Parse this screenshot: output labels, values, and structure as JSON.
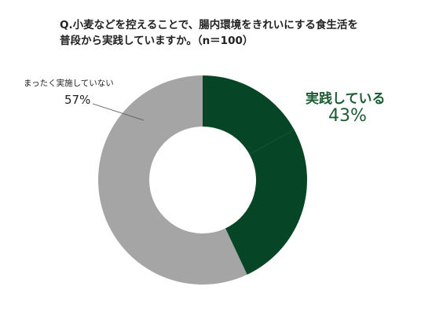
{
  "question": {
    "line1": "Q.小麦などを控えることで、腸内環境をきれいにする食生活を",
    "line2": "普段から実践していますか。（n＝100）"
  },
  "chart_data": {
    "type": "pie",
    "variant": "donut",
    "title": "Q.小麦などを控えることで、腸内環境をきれいにする食生活を普段から実践していますか。（n＝100）",
    "series": [
      {
        "label": "実践している",
        "value": 43,
        "display_value": "43%",
        "color": "#064626"
      },
      {
        "label": "まったく実施していない",
        "value": 57,
        "display_value": "57%",
        "color": "#a5a5a5"
      }
    ],
    "legend": "none"
  }
}
